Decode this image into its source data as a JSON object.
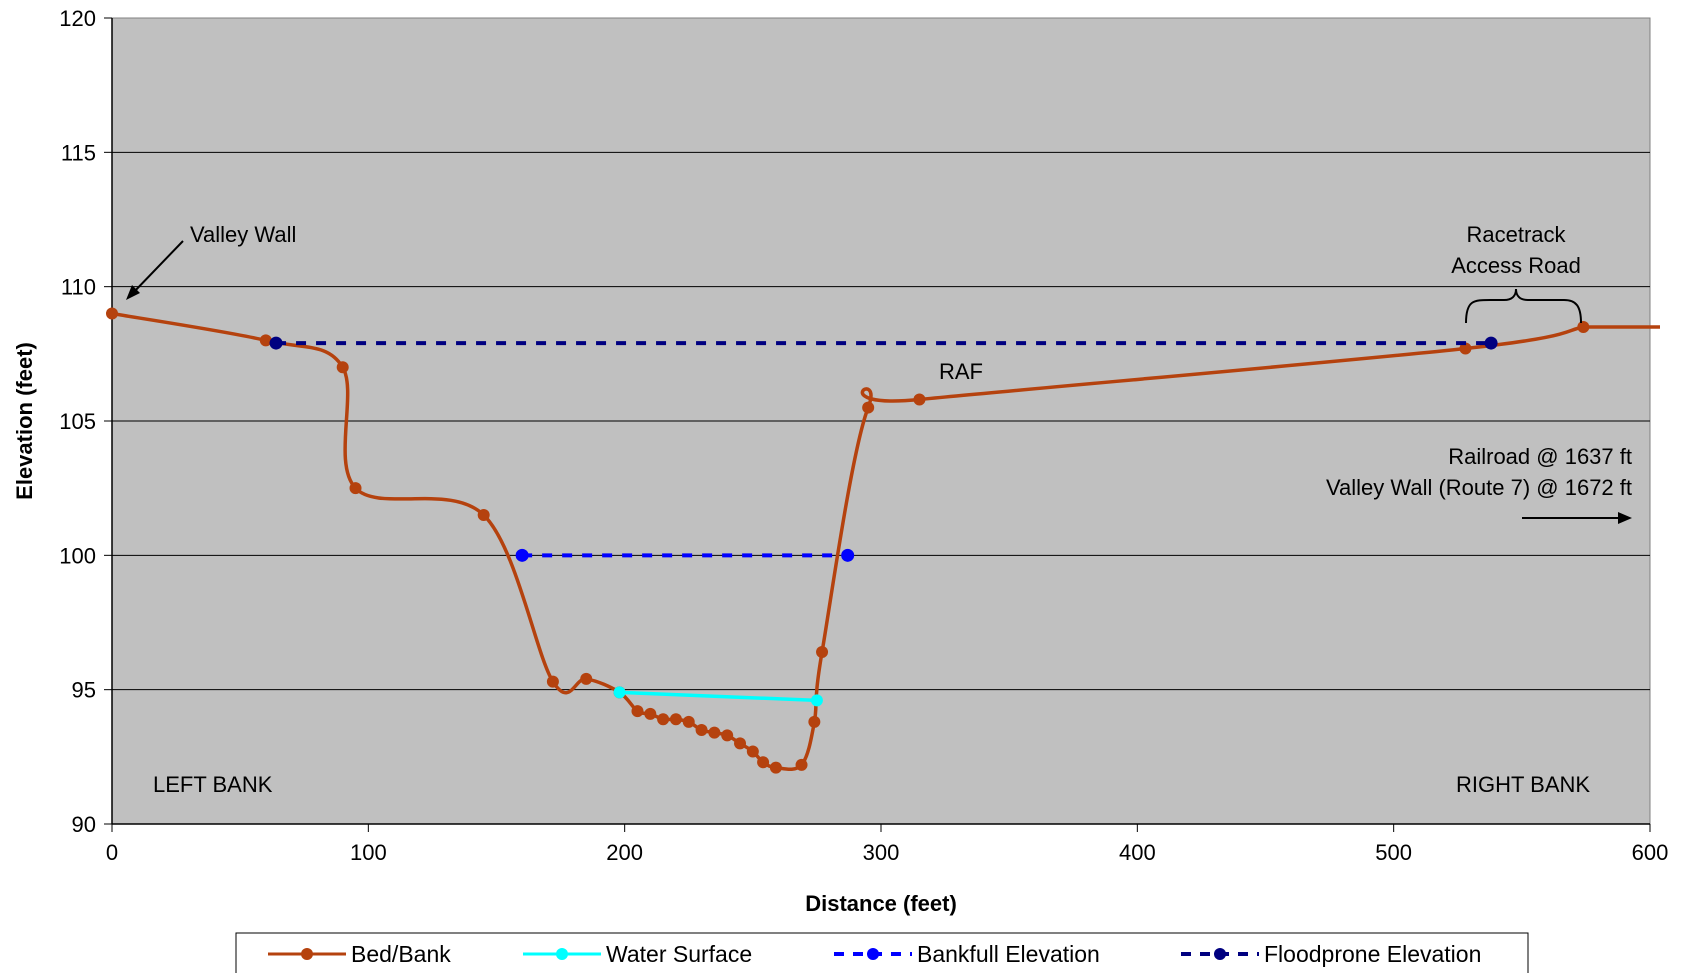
{
  "chart_data": {
    "type": "line",
    "xlabel": "Distance (feet)",
    "ylabel": "Elevation (feet)",
    "xlim": [
      0,
      600
    ],
    "ylim": [
      90,
      120
    ],
    "xticks": [
      0,
      100,
      200,
      300,
      400,
      500,
      600
    ],
    "yticks": [
      90,
      95,
      100,
      105,
      110,
      115,
      120
    ],
    "grid": "horizontal",
    "legend_position": "bottom",
    "colors": {
      "plot_background": "#c0c0c0",
      "bed_bank": "#b5420e",
      "water_surface": "#00ffff",
      "bankfull": "#0000ff",
      "floodprone": "#000080"
    },
    "series": [
      {
        "name": "Bed/Bank",
        "points": [
          [
            0,
            109.0
          ],
          [
            60,
            108.0
          ],
          [
            90,
            107.0
          ],
          [
            95,
            102.5
          ],
          [
            145,
            101.5
          ],
          [
            172,
            95.3
          ],
          [
            185,
            95.4
          ],
          [
            198,
            94.9
          ],
          [
            205,
            94.2
          ],
          [
            210,
            94.1
          ],
          [
            215,
            93.9
          ],
          [
            220,
            93.9
          ],
          [
            225,
            93.8
          ],
          [
            230,
            93.5
          ],
          [
            235,
            93.4
          ],
          [
            240,
            93.3
          ],
          [
            245,
            93.0
          ],
          [
            250,
            92.7
          ],
          [
            254,
            92.3
          ],
          [
            259,
            92.1
          ],
          [
            269,
            92.2
          ],
          [
            274,
            93.8
          ],
          [
            277,
            96.4
          ],
          [
            295,
            105.5
          ],
          [
            315,
            105.8
          ],
          [
            528,
            107.7
          ],
          [
            574,
            108.5
          ]
        ]
      },
      {
        "name": "Water Surface",
        "points": [
          [
            198,
            94.9
          ],
          [
            275,
            94.6
          ]
        ]
      },
      {
        "name": "Bankfull Elevation",
        "points": [
          [
            160,
            100.0
          ],
          [
            287,
            100.0
          ]
        ]
      },
      {
        "name": "Floodprone Elevation",
        "points": [
          [
            64,
            107.9
          ],
          [
            538,
            107.9
          ]
        ]
      }
    ],
    "annotations": {
      "valley_wall": "Valley Wall",
      "racetrack_line1": "Racetrack",
      "racetrack_line2": "Access Road",
      "raf": "RAF",
      "railroad": "Railroad @ 1637 ft",
      "valley_wall_route7": "Valley Wall (Route 7) @ 1672 ft",
      "left_bank": "LEFT BANK",
      "right_bank": "RIGHT BANK"
    }
  }
}
